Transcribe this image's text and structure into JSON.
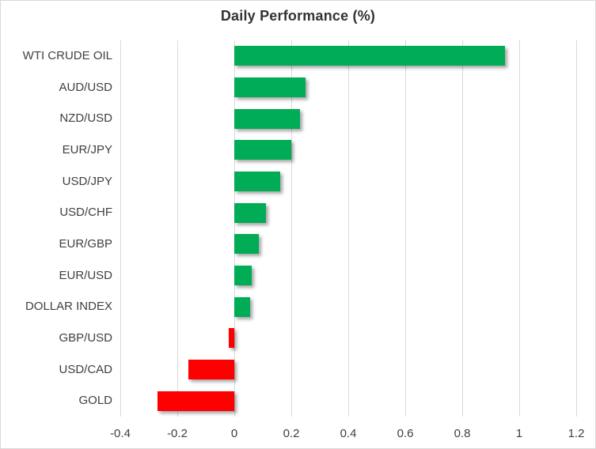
{
  "chart_data": {
    "type": "bar",
    "orientation": "horizontal",
    "title": "Daily Performance (%)",
    "categories": [
      "WTI CRUDE OIL",
      "AUD/USD",
      "NZD/USD",
      "EUR/JPY",
      "USD/JPY",
      "USD/CHF",
      "EUR/GBP",
      "EUR/USD",
      "DOLLAR INDEX",
      "GBP/USD",
      "USD/CAD",
      "GOLD"
    ],
    "values": [
      0.95,
      0.25,
      0.23,
      0.2,
      0.16,
      0.11,
      0.085,
      0.06,
      0.055,
      -0.02,
      -0.16,
      -0.27
    ],
    "xlabel": "",
    "ylabel": "",
    "xlim": [
      -0.4,
      1.2
    ],
    "xticks": [
      -0.4,
      -0.2,
      0,
      0.2,
      0.4,
      0.6,
      0.8,
      1,
      1.2
    ],
    "xtick_labels": [
      "-0.4",
      "-0.2",
      "0",
      "0.2",
      "0.4",
      "0.6",
      "0.8",
      "1",
      "1.2"
    ],
    "grid": true,
    "legend": false,
    "colors": {
      "positive": "#00AC55",
      "negative": "#FF0000",
      "gridline": "#D9D9D9",
      "border": "#D9D9D9",
      "background": "#FFFFFF",
      "title_text": "#333333",
      "axis_text": "#404040"
    }
  }
}
